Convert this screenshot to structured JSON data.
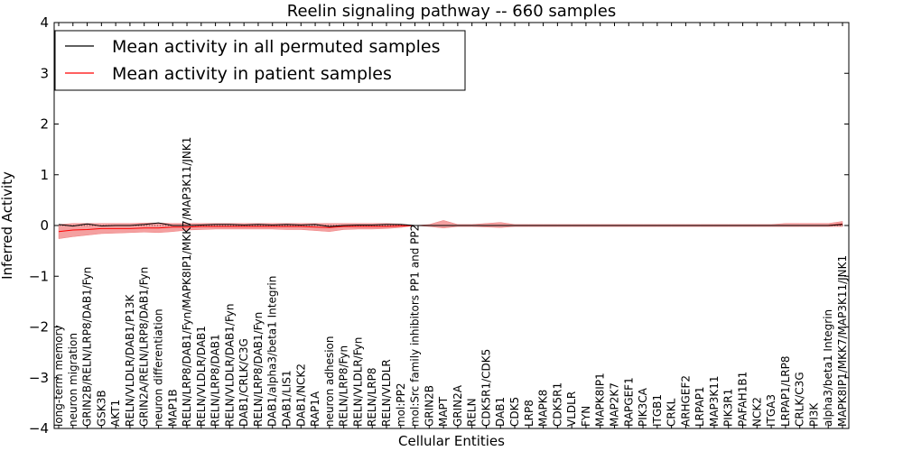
{
  "chart_data": {
    "type": "line",
    "title": "Reelin signaling pathway -- 660 samples",
    "xlabel": "Cellular Entities",
    "ylabel": "Inferred Activity",
    "ylim": [
      -4,
      4
    ],
    "yticks": [
      4,
      3,
      2,
      1,
      0,
      -1,
      -2,
      -3,
      -4
    ],
    "ytick_labels": [
      "4",
      "3",
      "2",
      "1",
      "0",
      "−1",
      "−2",
      "−3",
      "−4"
    ],
    "legend_position": "top-left",
    "categories": [
      "long-term memory",
      "neuron migration",
      "GRIN2B/RELN/LRP8/DAB1/Fyn",
      "GSK3B",
      "AKT1",
      "RELN/VLDLR/DAB1/P13K",
      "GRIN2A/RELN/LRP8/DAB1/Fyn",
      "neuron differentiation",
      "MAP1B",
      "RELN/LRP8/DAB1/Fyn/MAPK8IP1/MKK7/MAP3K11/JNK1",
      "RELN/VLDLR/DAB1",
      "RELN/LRP8/DAB1",
      "RELN/VLDLR/DAB1/Fyn",
      "DAB1/CRLK/C3G",
      "RELN/LRP8/DAB1/Fyn",
      "DAB1/alpha3/beta1 Integrin",
      "DAB1/LIS1",
      "DAB1/NCK2",
      "RAP1A",
      "neuron adhesion",
      "RELN/LRP8/Fyn",
      "RELN/VLDLR/Fyn",
      "RELN/LRP8",
      "RELN/VLDLR",
      "mol:PP2",
      "mol:Src family inhibitors PP1 and PP2",
      "GRIN2B",
      "MAPT",
      "GRIN2A",
      "RELN",
      "CDK5R1/CDK5",
      "DAB1",
      "CDK5",
      "LRP8",
      "MAPK8",
      "CDK5R1",
      "VLDLR",
      "FYN",
      "MAPK8IP1",
      "MAP2K7",
      "RAPGEF1",
      "PIK3CA",
      "ITGB1",
      "CRKL",
      "ARHGEF2",
      "LRPAP1",
      "MAP3K11",
      "PIK3R1",
      "PAFAH1B1",
      "NCK2",
      "ITGA3",
      "LRPAP1/LRP8",
      "CRLK/C3G",
      "PI3K",
      "alpha3/beta1 Integrin",
      "MAPK8IP1/MKK7/MAP3K11/JNK1"
    ],
    "series": [
      {
        "name": "Mean activity in all permuted samples",
        "color": "#000000",
        "values": [
          0.02,
          -0.01,
          0.03,
          -0.01,
          0.0,
          0.0,
          0.02,
          0.05,
          0.0,
          0.0,
          0.01,
          0.02,
          0.02,
          0.01,
          0.02,
          0.01,
          0.02,
          0.01,
          0.02,
          -0.02,
          0.0,
          0.01,
          0.01,
          0.02,
          0.02,
          0.0,
          0.0,
          0.0,
          0.0,
          0.0,
          0.0,
          0.0,
          0.0,
          0.0,
          0.0,
          0.0,
          0.0,
          0.0,
          0.0,
          0.0,
          0.0,
          0.0,
          0.0,
          0.0,
          0.0,
          0.0,
          0.0,
          0.0,
          0.0,
          0.0,
          0.0,
          0.0,
          0.0,
          0.0,
          0.0,
          0.02
        ]
      },
      {
        "name": "Mean activity in patient samples",
        "color": "#ff0000",
        "band_color": "#f08080",
        "values": [
          -0.12,
          -0.09,
          -0.08,
          -0.06,
          -0.06,
          -0.06,
          -0.05,
          -0.05,
          -0.03,
          -0.03,
          -0.02,
          -0.02,
          -0.02,
          -0.02,
          -0.02,
          -0.02,
          -0.02,
          -0.02,
          -0.03,
          -0.04,
          -0.02,
          -0.02,
          -0.02,
          -0.02,
          -0.01,
          0.0,
          0.0,
          0.0,
          0.0,
          0.0,
          0.0,
          0.0,
          0.0,
          0.0,
          0.0,
          0.0,
          0.0,
          0.0,
          0.0,
          0.0,
          0.0,
          0.0,
          0.0,
          0.0,
          0.0,
          0.0,
          0.0,
          0.0,
          0.0,
          0.0,
          0.0,
          0.0,
          0.0,
          0.0,
          0.0,
          0.03
        ],
        "band_upper": [
          0.02,
          0.04,
          0.04,
          0.04,
          0.04,
          0.04,
          0.05,
          0.05,
          0.04,
          0.04,
          0.04,
          0.04,
          0.04,
          0.04,
          0.04,
          0.04,
          0.04,
          0.04,
          0.04,
          0.04,
          0.04,
          0.04,
          0.04,
          0.04,
          0.03,
          0.0,
          0.02,
          0.1,
          0.02,
          0.02,
          0.04,
          0.06,
          0.02,
          0.02,
          0.02,
          0.02,
          0.02,
          0.02,
          0.02,
          0.02,
          0.02,
          0.02,
          0.02,
          0.02,
          0.02,
          0.02,
          0.02,
          0.02,
          0.02,
          0.02,
          0.02,
          0.04,
          0.04,
          0.04,
          0.04,
          0.08
        ],
        "band_lower": [
          -0.26,
          -0.22,
          -0.19,
          -0.16,
          -0.15,
          -0.14,
          -0.13,
          -0.14,
          -0.12,
          -0.09,
          -0.08,
          -0.07,
          -0.07,
          -0.07,
          -0.07,
          -0.07,
          -0.08,
          -0.08,
          -0.1,
          -0.12,
          -0.08,
          -0.07,
          -0.07,
          -0.06,
          -0.04,
          0.0,
          -0.02,
          -0.05,
          -0.02,
          -0.02,
          -0.03,
          -0.04,
          -0.02,
          -0.02,
          -0.02,
          -0.02,
          -0.02,
          -0.02,
          -0.02,
          -0.02,
          -0.02,
          -0.02,
          -0.02,
          -0.02,
          -0.02,
          -0.02,
          -0.02,
          -0.02,
          -0.02,
          -0.02,
          -0.02,
          -0.02,
          -0.02,
          -0.02,
          -0.02,
          -0.02
        ]
      }
    ]
  }
}
